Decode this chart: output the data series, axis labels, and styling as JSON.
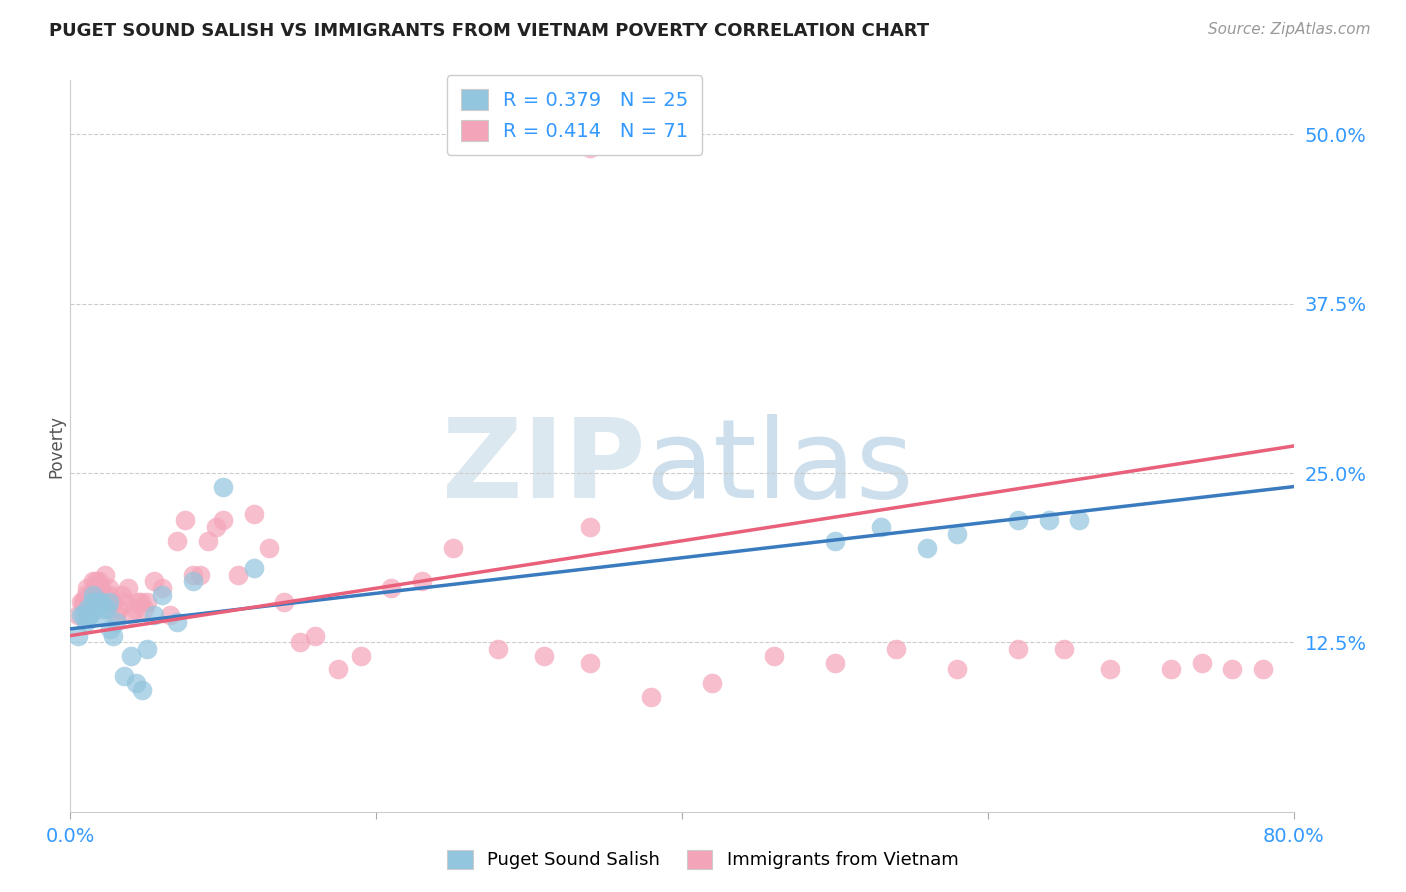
{
  "title": "PUGET SOUND SALISH VS IMMIGRANTS FROM VIETNAM POVERTY CORRELATION CHART",
  "source": "Source: ZipAtlas.com",
  "ylabel": "Poverty",
  "ytick_labels": [
    "12.5%",
    "25.0%",
    "37.5%",
    "50.0%"
  ],
  "ytick_values": [
    0.125,
    0.25,
    0.375,
    0.5
  ],
  "xlim": [
    0.0,
    0.8
  ],
  "ylim": [
    0.0,
    0.54
  ],
  "blue_color": "#92c5de",
  "pink_color": "#f4a4b8",
  "blue_line_color": "#3a7bbf",
  "pink_line_color": "#e8607a",
  "legend_text_color": "#3399ff",
  "watermark_color": "#e0e8f0",
  "blue_scatter_x": [
    0.005,
    0.007,
    0.009,
    0.01,
    0.011,
    0.012,
    0.013,
    0.014,
    0.015,
    0.016,
    0.017,
    0.018,
    0.019,
    0.02,
    0.022,
    0.024,
    0.025,
    0.026,
    0.028,
    0.03,
    0.035,
    0.04,
    0.043,
    0.047,
    0.05,
    0.055,
    0.06,
    0.07,
    0.08,
    0.1,
    0.12,
    0.5,
    0.53,
    0.56,
    0.58,
    0.62,
    0.64,
    0.66
  ],
  "blue_scatter_y": [
    0.13,
    0.145,
    0.145,
    0.14,
    0.15,
    0.145,
    0.145,
    0.155,
    0.16,
    0.15,
    0.155,
    0.145,
    0.155,
    0.155,
    0.15,
    0.15,
    0.155,
    0.135,
    0.13,
    0.14,
    0.1,
    0.115,
    0.095,
    0.09,
    0.12,
    0.145,
    0.16,
    0.14,
    0.17,
    0.24,
    0.18,
    0.2,
    0.21,
    0.195,
    0.205,
    0.215,
    0.215,
    0.215
  ],
  "pink_scatter_x": [
    0.005,
    0.007,
    0.008,
    0.009,
    0.01,
    0.01,
    0.011,
    0.012,
    0.013,
    0.014,
    0.015,
    0.016,
    0.017,
    0.018,
    0.019,
    0.02,
    0.022,
    0.023,
    0.025,
    0.026,
    0.028,
    0.03,
    0.032,
    0.034,
    0.036,
    0.038,
    0.04,
    0.042,
    0.044,
    0.046,
    0.048,
    0.05,
    0.055,
    0.06,
    0.065,
    0.07,
    0.075,
    0.08,
    0.085,
    0.09,
    0.095,
    0.1,
    0.11,
    0.12,
    0.13,
    0.14,
    0.15,
    0.16,
    0.175,
    0.19,
    0.21,
    0.23,
    0.25,
    0.28,
    0.31,
    0.34,
    0.38,
    0.42,
    0.46,
    0.5,
    0.54,
    0.58,
    0.62,
    0.65,
    0.68,
    0.72,
    0.74,
    0.76,
    0.78,
    0.34,
    0.34
  ],
  "pink_scatter_y": [
    0.145,
    0.155,
    0.155,
    0.155,
    0.16,
    0.15,
    0.165,
    0.155,
    0.16,
    0.155,
    0.17,
    0.165,
    0.17,
    0.165,
    0.17,
    0.165,
    0.16,
    0.175,
    0.165,
    0.16,
    0.155,
    0.145,
    0.15,
    0.16,
    0.155,
    0.165,
    0.145,
    0.15,
    0.155,
    0.155,
    0.15,
    0.155,
    0.17,
    0.165,
    0.145,
    0.2,
    0.215,
    0.175,
    0.175,
    0.2,
    0.21,
    0.215,
    0.175,
    0.22,
    0.195,
    0.155,
    0.125,
    0.13,
    0.105,
    0.115,
    0.165,
    0.17,
    0.195,
    0.12,
    0.115,
    0.11,
    0.085,
    0.095,
    0.115,
    0.11,
    0.12,
    0.105,
    0.12,
    0.12,
    0.105,
    0.105,
    0.11,
    0.105,
    0.105,
    0.49,
    0.21
  ],
  "blue_line_x": [
    0.0,
    0.8
  ],
  "blue_line_y": [
    0.135,
    0.24
  ],
  "pink_line_x": [
    0.0,
    0.8
  ],
  "pink_line_y": [
    0.13,
    0.27
  ]
}
